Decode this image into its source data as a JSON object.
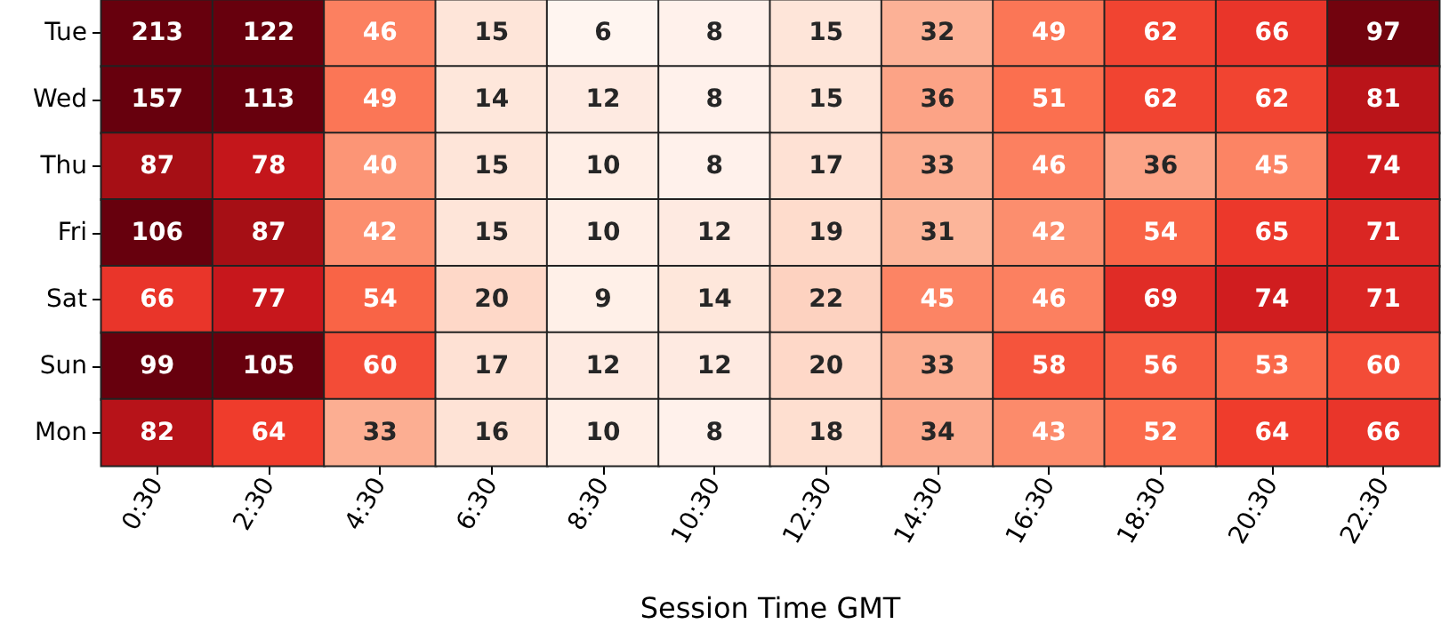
{
  "chart_data": {
    "type": "heatmap",
    "xlabel": "Session Time GMT",
    "categories": [
      "0:30",
      "2:30",
      "4:30",
      "6:30",
      "8:30",
      "10:30",
      "12:30",
      "14:30",
      "16:30",
      "18:30",
      "20:30",
      "22:30"
    ],
    "y_categories": [
      "Tue",
      "Wed",
      "Thu",
      "Fri",
      "Sat",
      "Sun",
      "Mon"
    ],
    "cells": [
      [
        213,
        122,
        46,
        15,
        6,
        8,
        15,
        32,
        49,
        62,
        66,
        97
      ],
      [
        157,
        113,
        49,
        14,
        12,
        8,
        15,
        36,
        51,
        62,
        62,
        81
      ],
      [
        87,
        78,
        40,
        15,
        10,
        8,
        17,
        33,
        46,
        36,
        45,
        74
      ],
      [
        106,
        87,
        42,
        15,
        10,
        12,
        19,
        31,
        42,
        54,
        65,
        71
      ],
      [
        66,
        77,
        54,
        20,
        9,
        14,
        22,
        45,
        46,
        69,
        74,
        71
      ],
      [
        99,
        105,
        60,
        17,
        12,
        12,
        20,
        33,
        58,
        56,
        53,
        60
      ],
      [
        82,
        64,
        33,
        16,
        10,
        8,
        18,
        34,
        43,
        52,
        64,
        66
      ]
    ],
    "data_labels": true
  }
}
